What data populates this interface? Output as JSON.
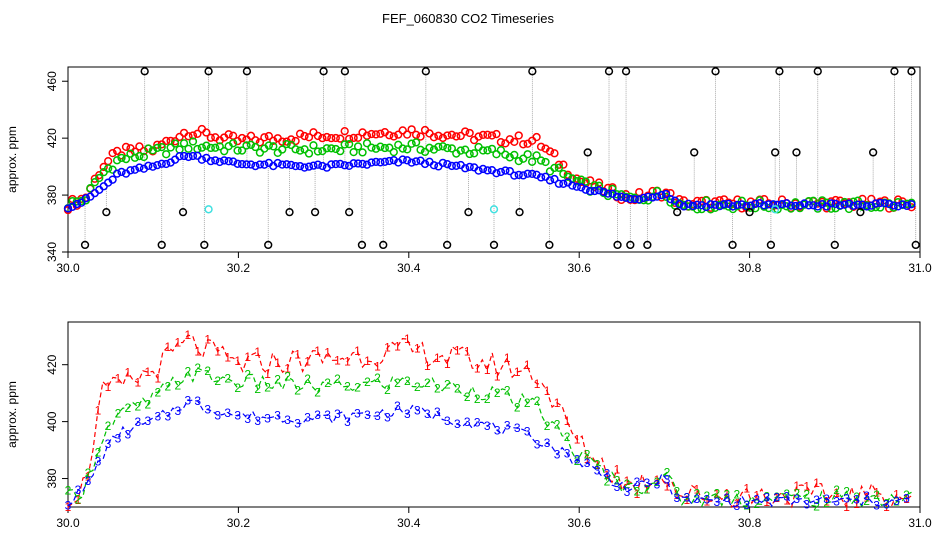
{
  "title": "FEF_060830  CO2 Timeseries",
  "colors": {
    "series1": "#ff0000",
    "series2": "#00c000",
    "series3": "#0000ff",
    "outlier": "#000000",
    "flagged": "#40e0e0",
    "guide": "#999999"
  },
  "chart_data": [
    {
      "type": "scatter",
      "panel": "top",
      "ylabel": "approx. ppm",
      "xlabel": "",
      "xlim": [
        30.0,
        31.0
      ],
      "ylim": [
        340,
        470
      ],
      "x_ticks": [
        30.0,
        30.2,
        30.4,
        30.6,
        30.8,
        31.0
      ],
      "x_tick_labels": [
        "30.0",
        "30.2",
        "30.4",
        "30.6",
        "30.8",
        "31.0"
      ],
      "y_ticks": [
        340,
        380,
        420,
        460
      ],
      "y_tick_labels": [
        "340",
        "380",
        "420",
        "460"
      ],
      "legend": "none",
      "series": [
        {
          "name": "1",
          "marker": "circle",
          "color": "red",
          "knots_x": [
            30.0,
            30.02,
            30.04,
            30.06,
            30.1,
            30.14,
            30.2,
            30.3,
            30.4,
            30.5,
            30.55,
            30.6,
            30.66,
            30.7,
            30.72,
            31.0
          ],
          "knots_y": [
            373,
            378,
            400,
            410,
            412,
            425,
            418,
            422,
            425,
            420,
            418,
            390,
            378,
            382,
            374,
            374
          ]
        },
        {
          "name": "2",
          "marker": "circle",
          "color": "green",
          "knots_x": [
            30.0,
            30.02,
            30.04,
            30.06,
            30.1,
            30.14,
            30.2,
            30.3,
            30.4,
            30.5,
            30.55,
            30.6,
            30.66,
            30.7,
            30.72,
            31.0
          ],
          "knots_y": [
            373,
            377,
            395,
            405,
            410,
            415,
            413,
            412,
            414,
            410,
            405,
            388,
            377,
            381,
            373,
            373
          ]
        },
        {
          "name": "3",
          "marker": "circle",
          "color": "blue",
          "knots_x": [
            30.0,
            30.02,
            30.04,
            30.06,
            30.1,
            30.14,
            30.2,
            30.3,
            30.4,
            30.5,
            30.55,
            30.6,
            30.66,
            30.7,
            30.72,
            31.0
          ],
          "knots_y": [
            372,
            376,
            385,
            395,
            400,
            408,
            402,
            400,
            404,
            397,
            393,
            386,
            377,
            381,
            373,
            373
          ]
        }
      ],
      "outliers": {
        "x": [
          30.02,
          30.045,
          30.09,
          30.11,
          30.135,
          30.16,
          30.165,
          30.21,
          30.235,
          30.26,
          30.29,
          30.3,
          30.325,
          30.33,
          30.345,
          30.37,
          30.42,
          30.445,
          30.47,
          30.5,
          30.53,
          30.545,
          30.565,
          30.61,
          30.635,
          30.645,
          30.655,
          30.66,
          30.68,
          30.715,
          30.735,
          30.76,
          30.78,
          30.8,
          30.825,
          30.83,
          30.835,
          30.855,
          30.88,
          30.9,
          30.93,
          30.945,
          30.97,
          30.99,
          30.995
        ],
        "y": [
          345,
          368,
          467,
          345,
          368,
          345,
          467,
          467,
          345,
          368,
          368,
          467,
          467,
          368,
          345,
          345,
          467,
          345,
          368,
          345,
          368,
          467,
          345,
          410,
          467,
          345,
          467,
          345,
          345,
          368,
          410,
          467,
          345,
          368,
          345,
          410,
          467,
          410,
          467,
          345,
          368,
          410,
          467,
          467,
          345
        ]
      },
      "flagged": {
        "x": [
          30.165,
          30.5,
          30.83
        ],
        "y": [
          370,
          370,
          370
        ]
      }
    },
    {
      "type": "line",
      "panel": "bottom",
      "ylabel": "approx. ppm",
      "xlabel": "",
      "xlim": [
        30.0,
        31.0
      ],
      "ylim": [
        370,
        435
      ],
      "x_ticks": [
        30.0,
        30.2,
        30.4,
        30.6,
        30.8,
        31.0
      ],
      "x_tick_labels": [
        "30.0",
        "30.2",
        "30.4",
        "30.6",
        "30.8",
        "31.0"
      ],
      "y_ticks": [
        380,
        400,
        420
      ],
      "y_tick_labels": [
        "380",
        "400",
        "420"
      ],
      "legend": "none",
      "series": [
        {
          "name": "1",
          "marker": "1",
          "color": "red",
          "style": "dashed",
          "knots_x": [
            30.0,
            30.02,
            30.04,
            30.06,
            30.1,
            30.14,
            30.2,
            30.3,
            30.4,
            30.5,
            30.55,
            30.6,
            30.66,
            30.7,
            30.72,
            31.0
          ],
          "knots_y": [
            373,
            378,
            410,
            412,
            418,
            428,
            420,
            422,
            425,
            420,
            417,
            392,
            377,
            382,
            374,
            374
          ]
        },
        {
          "name": "2",
          "marker": "2",
          "color": "green",
          "style": "dashed",
          "knots_x": [
            30.0,
            30.02,
            30.04,
            30.06,
            30.1,
            30.14,
            30.2,
            30.3,
            30.4,
            30.5,
            30.55,
            30.6,
            30.66,
            30.7,
            30.72,
            31.0
          ],
          "knots_y": [
            373,
            377,
            395,
            402,
            408,
            417,
            414,
            412,
            414,
            410,
            405,
            388,
            376,
            381,
            373,
            373
          ]
        },
        {
          "name": "3",
          "marker": "3",
          "color": "blue",
          "style": "dashed",
          "knots_x": [
            30.0,
            30.02,
            30.04,
            30.06,
            30.1,
            30.14,
            30.2,
            30.3,
            30.4,
            30.5,
            30.55,
            30.6,
            30.66,
            30.7,
            30.72,
            31.0
          ],
          "knots_y": [
            372,
            376,
            388,
            396,
            400,
            407,
            402,
            401,
            404,
            398,
            394,
            386,
            376,
            380,
            372,
            372
          ]
        }
      ]
    }
  ]
}
